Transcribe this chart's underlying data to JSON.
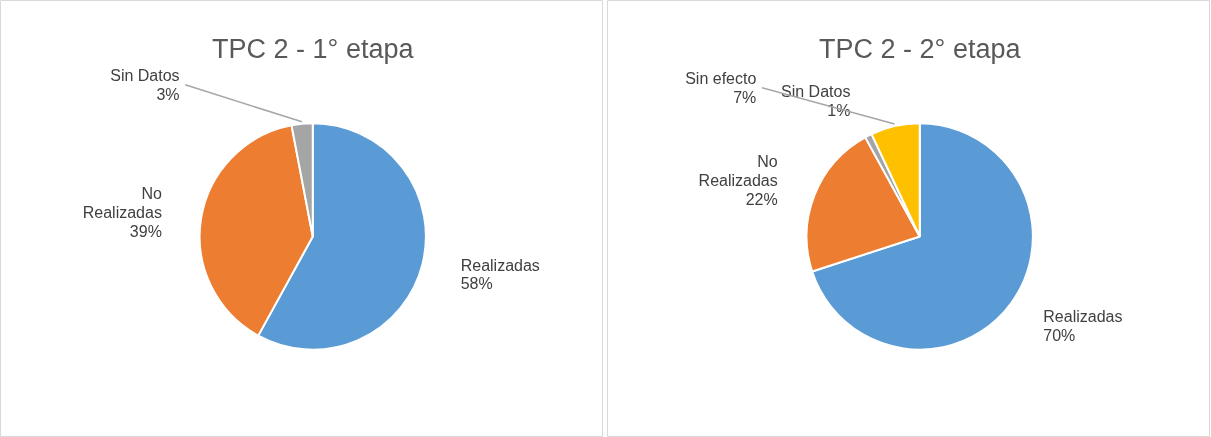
{
  "chart_data": [
    {
      "type": "pie",
      "title": "TPC 2 - 1° etapa",
      "categories": [
        "Realizadas",
        "No Realizadas",
        "Sin Datos"
      ],
      "values": [
        58,
        39,
        3
      ],
      "colors": [
        "#5b9bd5",
        "#ed7d31",
        "#a5a5a5"
      ],
      "value_labels": [
        "58%",
        "39%",
        "3%"
      ]
    },
    {
      "type": "pie",
      "title": "TPC 2 - 2° etapa",
      "categories": [
        "Realizadas",
        "No Realizadas",
        "Sin Datos",
        "Sin efecto"
      ],
      "values": [
        70,
        22,
        1,
        7
      ],
      "colors": [
        "#5b9bd5",
        "#ed7d31",
        "#a5a5a5",
        "#ffc000"
      ],
      "value_labels": [
        "70%",
        "22%",
        "1%",
        "7%"
      ]
    }
  ]
}
